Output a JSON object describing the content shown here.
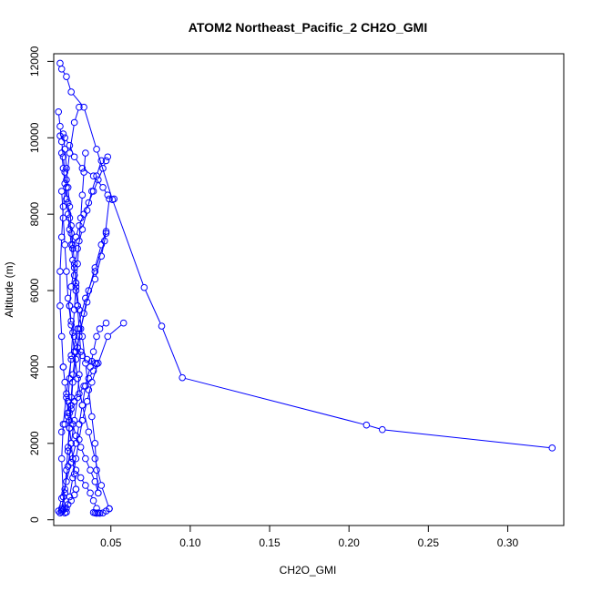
{
  "chart_data": {
    "type": "scatter",
    "title": "ATOM2 Northeast_Pacific_2 CH2O_GMI",
    "xlabel": "CH2O_GMI",
    "ylabel": "Altitude (m)",
    "xlim": [
      0.014,
      0.3353
    ],
    "ylim": [
      -150,
      12200
    ],
    "xticks": [
      0.05,
      0.1,
      0.15,
      0.2,
      0.25,
      0.3
    ],
    "xtick_labels": [
      "0.05",
      "0.10",
      "0.15",
      "0.20",
      "0.25",
      "0.30"
    ],
    "yticks": [
      0,
      2000,
      4000,
      6000,
      8000,
      10000,
      12000
    ],
    "ytick_labels": [
      "0",
      "2000",
      "4000",
      "6000",
      "8000",
      "10000",
      "12000"
    ],
    "grid": false,
    "color": "#0000ff",
    "marker": "open-circle",
    "series": [
      {
        "x": [
          0.328,
          0.221,
          0.211,
          0.095,
          0.082,
          0.071,
          0.051,
          0.041,
          0.033,
          0.025,
          0.022,
          0.019,
          0.018
        ],
        "y": [
          1880,
          2360,
          2480,
          3720,
          5070,
          6080,
          8380,
          9700,
          10800,
          11200,
          11600,
          11800,
          11950
        ]
      },
      {
        "x": [
          0.018,
          0.021,
          0.024,
          0.027,
          0.032,
          0.039,
          0.045,
          0.048,
          0.052
        ],
        "y": [
          10050,
          10000,
          9800,
          9500,
          9200,
          9000,
          8700,
          8500,
          8400
        ]
      },
      {
        "x": [
          0.049,
          0.046,
          0.04,
          0.034,
          0.029,
          0.025,
          0.022,
          0.02,
          0.019,
          0.02,
          0.022
        ],
        "y": [
          8400,
          7300,
          6500,
          5800,
          5000,
          4200,
          3300,
          2500,
          1600,
          600,
          200
        ]
      },
      {
        "x": [
          0.017,
          0.019,
          0.022,
          0.025,
          0.028,
          0.03,
          0.032,
          0.034,
          0.037,
          0.039,
          0.041,
          0.043,
          0.047
        ],
        "y": [
          230,
          560,
          1000,
          1500,
          2000,
          2500,
          3000,
          3500,
          4000,
          4400,
          4800,
          5000,
          5150
        ]
      },
      {
        "x": [
          0.058,
          0.048,
          0.042,
          0.038,
          0.035,
          0.032,
          0.03,
          0.028,
          0.026,
          0.024,
          0.022,
          0.021
        ],
        "y": [
          5150,
          4800,
          4100,
          3600,
          3100,
          2600,
          2100,
          1600,
          1100,
          600,
          300,
          180
        ]
      },
      {
        "x": [
          0.019,
          0.021,
          0.022,
          0.023,
          0.024,
          0.025,
          0.026,
          0.028,
          0.031,
          0.035,
          0.04,
          0.044,
          0.047
        ],
        "y": [
          260,
          700,
          1300,
          1900,
          2600,
          3200,
          3800,
          4400,
          5000,
          5700,
          6300,
          6900,
          7500
        ]
      },
      {
        "x": [
          0.047,
          0.044,
          0.04,
          0.036,
          0.033,
          0.03,
          0.028,
          0.026,
          0.025,
          0.024,
          0.023
        ],
        "y": [
          7550,
          7200,
          6600,
          6000,
          5400,
          4800,
          4200,
          3600,
          3000,
          2400,
          1800
        ]
      },
      {
        "x": [
          0.023,
          0.025,
          0.028,
          0.031,
          0.034,
          0.037,
          0.039,
          0.041,
          0.042
        ],
        "y": [
          1800,
          1500,
          1300,
          1100,
          900,
          700,
          500,
          300,
          180
        ]
      },
      {
        "x": [
          0.039,
          0.04,
          0.041,
          0.043,
          0.045,
          0.047,
          0.049
        ],
        "y": [
          190,
          180,
          170,
          170,
          180,
          230,
          290
        ]
      },
      {
        "x": [
          0.049,
          0.044,
          0.04,
          0.036,
          0.032,
          0.029,
          0.027,
          0.025,
          0.023,
          0.022,
          0.021,
          0.02,
          0.019
        ],
        "y": [
          290,
          900,
          1600,
          2300,
          3000,
          3700,
          4400,
          5100,
          5800,
          6500,
          7200,
          7900,
          8600
        ]
      },
      {
        "x": [
          0.019,
          0.02,
          0.021,
          0.022,
          0.023,
          0.024,
          0.025,
          0.026,
          0.027,
          0.028,
          0.029
        ],
        "y": [
          9600,
          9200,
          8800,
          8400,
          8000,
          7600,
          7200,
          6800,
          6400,
          6000,
          5600
        ]
      },
      {
        "x": [
          0.029,
          0.03,
          0.031,
          0.03,
          0.029,
          0.027,
          0.025,
          0.023,
          0.021,
          0.019
        ],
        "y": [
          5600,
          5000,
          4400,
          3800,
          3200,
          2600,
          2000,
          1400,
          800,
          300
        ]
      },
      {
        "x": [
          0.017,
          0.018,
          0.019,
          0.02,
          0.021,
          0.022,
          0.023,
          0.024,
          0.025,
          0.026
        ],
        "y": [
          10680,
          10300,
          9900,
          9500,
          9100,
          8700,
          8300,
          7900,
          7500,
          7100
        ]
      },
      {
        "x": [
          0.026,
          0.028,
          0.03,
          0.033,
          0.036,
          0.039,
          0.042,
          0.045,
          0.047,
          0.048
        ],
        "y": [
          7100,
          7400,
          7700,
          8000,
          8300,
          8600,
          8900,
          9200,
          9400,
          9500
        ]
      },
      {
        "x": [
          0.03,
          0.027,
          0.024,
          0.022,
          0.02,
          0.019,
          0.018,
          0.018,
          0.019,
          0.02
        ],
        "y": [
          10800,
          10400,
          9600,
          8900,
          8200,
          7400,
          6500,
          5600,
          4800,
          4000
        ]
      },
      {
        "x": [
          0.02,
          0.021,
          0.022,
          0.023,
          0.024,
          0.025,
          0.026,
          0.027,
          0.028
        ],
        "y": [
          4000,
          3600,
          3200,
          2800,
          2400,
          2000,
          1600,
          1200,
          800
        ]
      },
      {
        "x": [
          0.028,
          0.027,
          0.025,
          0.023,
          0.021,
          0.02,
          0.019,
          0.018
        ],
        "y": [
          800,
          650,
          500,
          400,
          320,
          260,
          210,
          180
        ]
      },
      {
        "x": [
          0.034,
          0.033,
          0.032,
          0.031,
          0.03,
          0.029,
          0.028,
          0.027,
          0.026,
          0.025,
          0.024,
          0.023
        ],
        "y": [
          9600,
          9100,
          8500,
          7900,
          7300,
          6700,
          6100,
          5500,
          4900,
          4300,
          3700,
          3100
        ]
      },
      {
        "x": [
          0.023,
          0.024,
          0.026,
          0.028,
          0.031,
          0.034,
          0.037,
          0.04,
          0.042
        ],
        "y": [
          3100,
          2800,
          2500,
          2200,
          1900,
          1600,
          1300,
          1000,
          700
        ]
      },
      {
        "x": [
          0.042,
          0.041,
          0.04,
          0.038,
          0.036,
          0.034,
          0.032,
          0.03,
          0.028
        ],
        "y": [
          700,
          1300,
          2000,
          2700,
          3400,
          4100,
          4800,
          5500,
          6200
        ]
      },
      {
        "x": [
          0.028,
          0.027,
          0.026,
          0.025,
          0.024,
          0.023,
          0.022,
          0.021,
          0.02
        ],
        "y": [
          6200,
          6700,
          7200,
          7700,
          8200,
          8700,
          9200,
          9700,
          10100
        ]
      },
      {
        "x": [
          0.044,
          0.041,
          0.038,
          0.035,
          0.032,
          0.029,
          0.027,
          0.025,
          0.024
        ],
        "y": [
          9400,
          9000,
          8600,
          8100,
          7600,
          7100,
          6600,
          6100,
          5600
        ]
      },
      {
        "x": [
          0.024,
          0.025,
          0.027,
          0.029,
          0.032,
          0.035,
          0.038,
          0.04,
          0.041
        ],
        "y": [
          5600,
          5200,
          4800,
          4500,
          4300,
          4200,
          4150,
          4100,
          4080
        ]
      },
      {
        "x": [
          0.041,
          0.039,
          0.036,
          0.033,
          0.03,
          0.027,
          0.025,
          0.023,
          0.021,
          0.019
        ],
        "y": [
          4080,
          3900,
          3700,
          3500,
          3300,
          3100,
          2900,
          2700,
          2500,
          2300
        ]
      }
    ]
  }
}
